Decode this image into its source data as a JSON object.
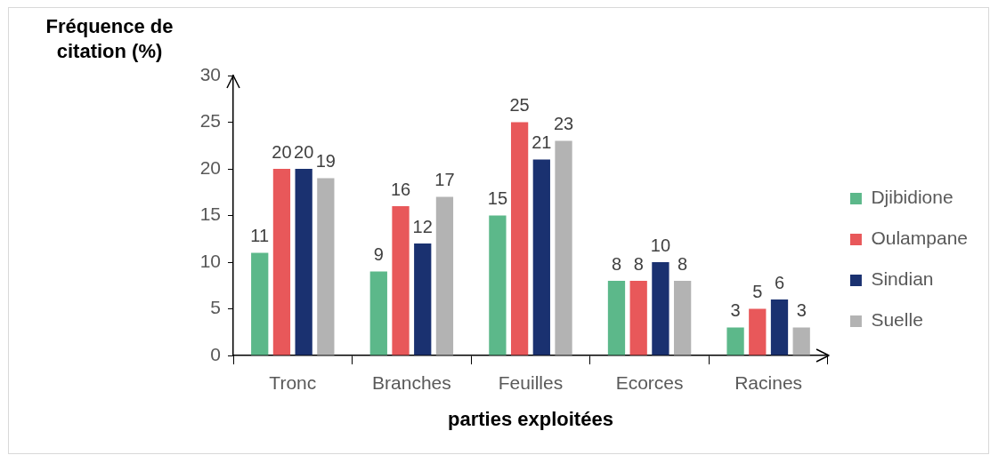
{
  "chart_data": {
    "type": "bar",
    "ylabel": "Fréquence de citation (%)",
    "xlabel": "parties exploitées",
    "categories": [
      "Tronc",
      "Branches",
      "Feuilles",
      "Ecorces",
      "Racines"
    ],
    "series": [
      {
        "name": "Djibidione",
        "color": "#5cb88a",
        "values": [
          11,
          9,
          15,
          8,
          3
        ]
      },
      {
        "name": "Oulampane",
        "color": "#e8585a",
        "values": [
          20,
          16,
          25,
          8,
          5
        ]
      },
      {
        "name": "Sindian",
        "color": "#1a3170",
        "values": [
          20,
          12,
          21,
          10,
          6
        ]
      },
      {
        "name": "Suelle",
        "color": "#b3b3b3",
        "values": [
          19,
          17,
          23,
          8,
          3
        ]
      }
    ],
    "ylim": [
      0,
      30
    ],
    "yticks": [
      0,
      5,
      10,
      15,
      20,
      25,
      30
    ],
    "grid": false,
    "legend": "right",
    "data_labels": true
  }
}
